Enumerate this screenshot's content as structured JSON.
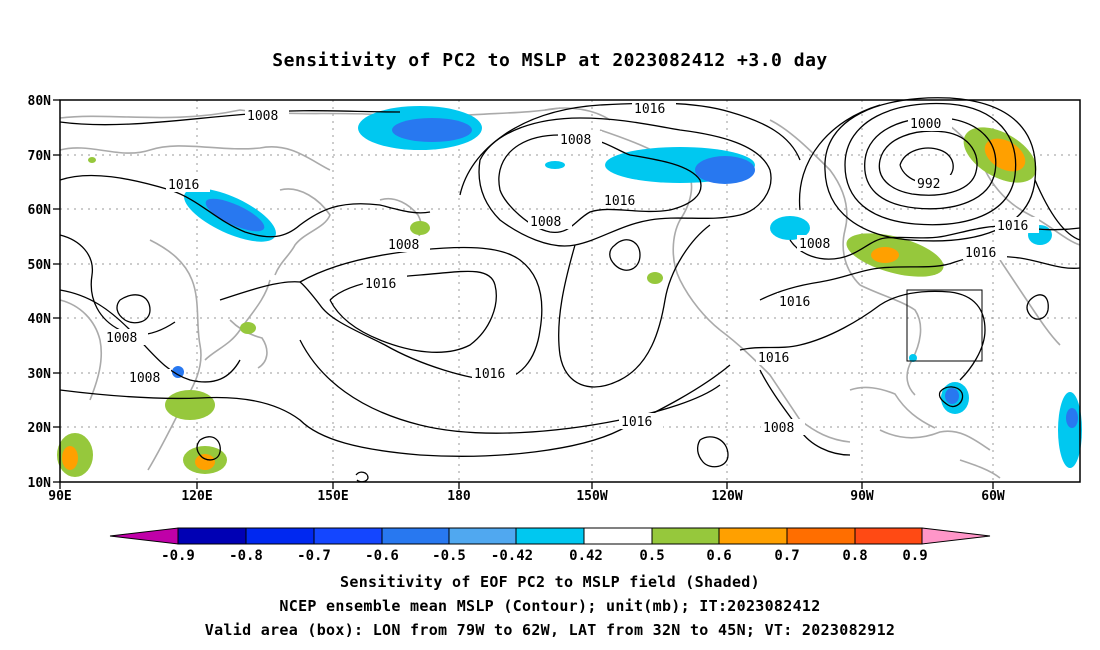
{
  "title": "Sensitivity of PC2 to MSLP at 2023082412 +3.0 day",
  "lat_ticks": [
    "80N",
    "70N",
    "60N",
    "50N",
    "40N",
    "30N",
    "20N",
    "10N"
  ],
  "lon_ticks": [
    "90E",
    "120E",
    "150E",
    "180",
    "150W",
    "120W",
    "90W",
    "60W"
  ],
  "contour_labels": [
    "1008",
    "1016",
    "1008",
    "1008",
    "1016",
    "1000",
    "992",
    "1016",
    "1008",
    "1008",
    "1016",
    "1016",
    "1016",
    "1008",
    "1008",
    "1016",
    "1016",
    "1016",
    "1016",
    "1008",
    "1016"
  ],
  "colorbar": {
    "labels": [
      "-0.9",
      "-0.8",
      "-0.7",
      "-0.6",
      "-0.5",
      "-0.42",
      "0.42",
      "0.5",
      "0.6",
      "0.7",
      "0.8",
      "0.9"
    ],
    "colors": [
      "#c000a8",
      "#0000b4",
      "#0028f0",
      "#1446ff",
      "#2878f0",
      "#50a8f0",
      "#00c8f0",
      "#ffffff",
      "#96c83c",
      "#ffa000",
      "#ff6e00",
      "#ff4a14",
      "#ff0000",
      "#ff96c8"
    ]
  },
  "captions": {
    "line1": "Sensitivity of EOF PC2 to MSLP field (Shaded)",
    "line2": "NCEP ensemble mean MSLP (Contour); unit(mb); IT:2023082412",
    "line3": "Valid area (box): LON from 79W to 62W, LAT from 32N to 45N; VT: 2023082912"
  }
}
